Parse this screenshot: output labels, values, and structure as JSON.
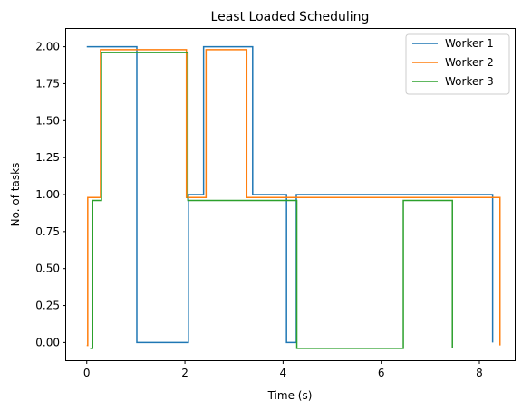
{
  "chart_data": {
    "type": "line",
    "title": "Least Loaded Scheduling",
    "xlabel": "Time (s)",
    "ylabel": "No. of tasks",
    "xlim": [
      -0.42,
      8.72
    ],
    "ylim": [
      -0.12,
      2.12
    ],
    "xticks": [
      0,
      2,
      4,
      6,
      8
    ],
    "xtick_labels": [
      "0",
      "2",
      "4",
      "6",
      "8"
    ],
    "yticks": [
      0.0,
      0.25,
      0.5,
      0.75,
      1.0,
      1.25,
      1.5,
      1.75,
      2.0
    ],
    "ytick_labels": [
      "0.00",
      "0.25",
      "0.50",
      "0.75",
      "1.00",
      "1.25",
      "1.50",
      "1.75",
      "2.00"
    ],
    "grid": false,
    "legend_position": "top-right",
    "step_where": "post",
    "series": [
      {
        "name": "Worker 1",
        "color": "#1f77b4",
        "offset": 0,
        "x": [
          0.0,
          1.02,
          2.07,
          2.38,
          3.38,
          4.07,
          4.27,
          8.27
        ],
        "y": [
          2,
          0,
          1,
          2,
          1,
          0,
          1,
          0
        ]
      },
      {
        "name": "Worker 2",
        "color": "#ff7f0e",
        "offset": -0.02,
        "x": [
          0.0,
          0.02,
          0.28,
          2.03,
          2.43,
          3.26,
          8.42
        ],
        "y": [
          0,
          1,
          2,
          1,
          2,
          1,
          0
        ]
      },
      {
        "name": "Worker 3",
        "color": "#2ca02c",
        "offset": -0.04,
        "x": [
          0.07,
          0.12,
          0.3,
          2.06,
          4.28,
          6.45,
          7.45
        ],
        "y": [
          0,
          1,
          2,
          1,
          0,
          1,
          0
        ]
      }
    ]
  }
}
